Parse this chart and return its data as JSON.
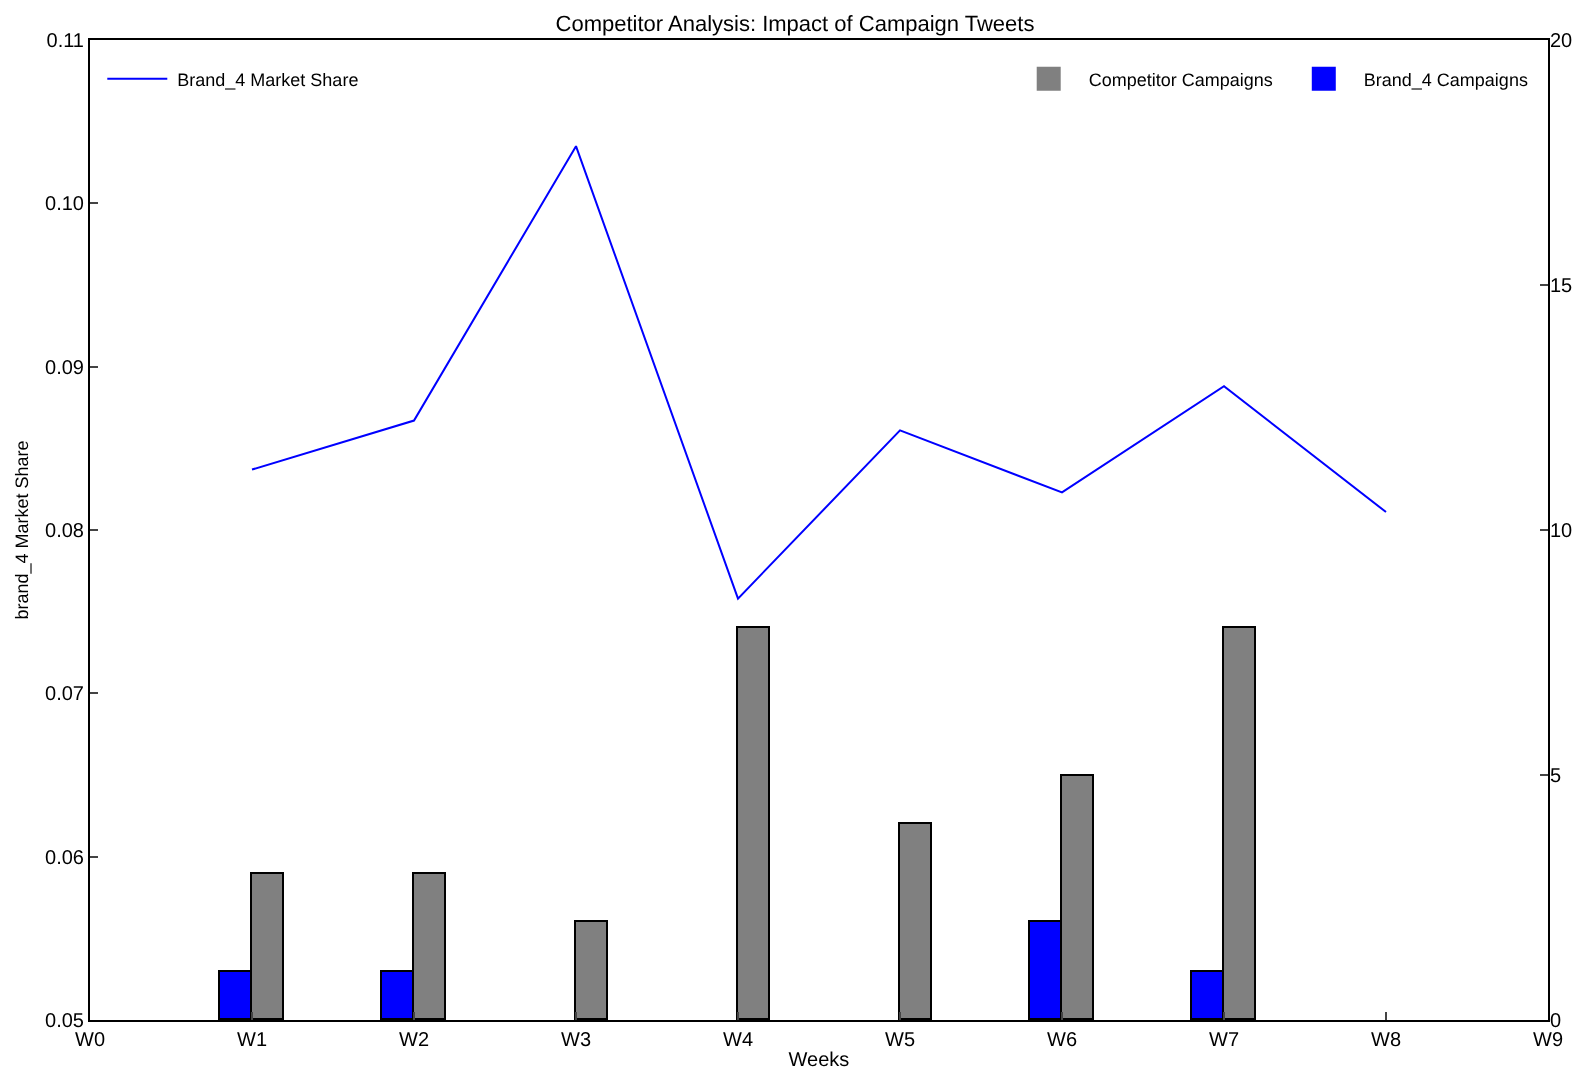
{
  "chart_data": {
    "type": "bar",
    "title": "Competitor Analysis: Impact of Campaign Tweets",
    "xlabel": "Weeks",
    "ylabel": "brand_4 Market Share",
    "categories": [
      "W0",
      "W1",
      "W2",
      "W3",
      "W4",
      "W5",
      "W6",
      "W7",
      "W8",
      "W9"
    ],
    "ylim": [
      0.05,
      0.11
    ],
    "yticks": [
      0.05,
      0.06,
      0.07,
      0.08,
      0.09,
      {
        "value": 0.1,
        "label": "0.10"
      },
      0.11
    ],
    "y2lim": [
      0,
      20
    ],
    "y2ticks": [
      0,
      5,
      10,
      15,
      20
    ],
    "series": [
      {
        "name": "Brand_4 Market Share",
        "type": "line",
        "color": "#0000ff",
        "values": [
          null,
          0.0837,
          0.0867,
          0.1035,
          0.0758,
          0.0861,
          0.0823,
          0.0888,
          0.0811,
          null
        ]
      },
      {
        "name": "Competitor Campaigns",
        "axis": "y2",
        "color": "#808080",
        "values": [
          null,
          3,
          3,
          2,
          8,
          4,
          5,
          8,
          null,
          null
        ]
      },
      {
        "name": "Brand_4 Campaigns",
        "axis": "y2",
        "color": "#0000ff",
        "values": [
          null,
          1,
          1,
          0,
          0,
          0,
          2,
          1,
          null,
          null
        ]
      }
    ],
    "grid": false,
    "legend": "top",
    "marker": "none",
    "line_style": "solid"
  }
}
